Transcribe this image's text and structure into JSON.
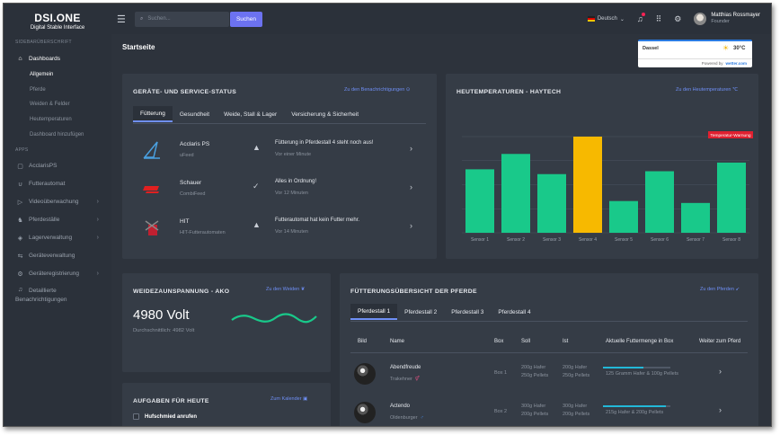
{
  "brand": {
    "title": "DSI.ONE",
    "subtitle": "Digital Stable Interface"
  },
  "sidebar": {
    "section1": "SIDEBARÜBERSCHRIFT",
    "dashboards": "Dashboards",
    "sub": [
      "Allgemein",
      "Pferde",
      "Weiden & Felder",
      "Heutemperaturen",
      "Dashboard hinzufügen"
    ],
    "section2": "APPS",
    "apps": [
      {
        "label": "AcclarisPS",
        "icon": "calendar-icon",
        "sym": "▢",
        "chev": false
      },
      {
        "label": "Futterautomat",
        "icon": "horseshoe-icon",
        "sym": "∪",
        "chev": false
      },
      {
        "label": "Videoüberwachung",
        "icon": "video-icon",
        "sym": "▷",
        "chev": true
      },
      {
        "label": "Pferdeställe",
        "icon": "horse-icon",
        "sym": "♞",
        "chev": true
      },
      {
        "label": "Lagerverwaltung",
        "icon": "box-icon",
        "sym": "◈",
        "chev": true
      },
      {
        "label": "Geräteverwaltung",
        "icon": "devices-icon",
        "sym": "⇆",
        "chev": false
      },
      {
        "label": "Geräteregistrierung",
        "icon": "gear-icon",
        "sym": "⚙",
        "chev": true
      }
    ],
    "notif1": "Detaillierte",
    "notif2": "Benachrichtigungen"
  },
  "topbar": {
    "search_placeholder": "Suchen...",
    "search_button": "Suchen",
    "language": "Deutsch",
    "user_name": "Matthias Rossmayer",
    "user_role": "Founder"
  },
  "page": {
    "title": "Startseite"
  },
  "weather": {
    "city": "Dassel",
    "temp": "30°C",
    "powered": "Powered by",
    "provider": "wetter.com"
  },
  "status": {
    "title": "GERÄTE- UND SERVICE-STATUS",
    "link": "Zu den Benachrichtigungen ⊙",
    "tabs": [
      "Fütterung",
      "Gesundheit",
      "Weide, Stall & Lager",
      "Versicherung & Sicherheit"
    ],
    "rows": [
      {
        "name": "Acclaris PS",
        "sub": "uFeed",
        "state": "▲",
        "msg": "Fütterung in Pferdestall 4 steht noch aus!",
        "time": "Vor einer Minute"
      },
      {
        "name": "Schauer",
        "sub": "CombiFeed",
        "state": "✓",
        "msg": "Alles in Ordnung!",
        "time": "Vor 12 Minuten"
      },
      {
        "name": "HIT",
        "sub": "HIT-Futterautomaten",
        "state": "▲",
        "msg": "Futterautomat hat kein Futter mehr.",
        "time": "Vor 14 Minuten"
      }
    ]
  },
  "heut": {
    "title": "HEUTEMPERATUREN - HAYTECH",
    "link": "Zu den Heutemperaturen ℃",
    "warning": "Temperatur-Warnung"
  },
  "chart_data": {
    "type": "bar",
    "categories": [
      "Sensor 1",
      "Sensor 2",
      "Sensor 3",
      "Sensor 4",
      "Sensor 5",
      "Sensor 6",
      "Sensor 7",
      "Sensor 8"
    ],
    "values": [
      66,
      82,
      61,
      100,
      33,
      64,
      31,
      73
    ],
    "ylim": [
      0,
      100
    ],
    "colors": [
      "#19c98a",
      "#19c98a",
      "#19c98a",
      "#f7b900",
      "#19c98a",
      "#19c98a",
      "#19c98a",
      "#19c98a"
    ],
    "grid": true
  },
  "fence": {
    "title": "WEIDEZAUNSPANNUNG - AKO",
    "link": "Zu den Weiden ❦",
    "value": "4980 Volt",
    "avg": "Durchschnittlich: 4982 Volt"
  },
  "tasks": {
    "title": "AUFGABEN FÜR HEUTE",
    "link": "Zum Kalender ▣",
    "item": "Hufschmied anrufen"
  },
  "feeding": {
    "title": "FÜTTERUNGSÜBERSICHT DER PFERDE",
    "link": "Zu den Pferden ➹",
    "tabs": [
      "Pferdestall 1",
      "Pferdestall 2",
      "Pferdestall 3",
      "Pferdestall 4"
    ],
    "headers": [
      "Bild",
      "Name",
      "Box",
      "Soll",
      "Ist",
      "Aktuelle Futtermenge in Box",
      "Weiter zum Pferd"
    ],
    "rows": [
      {
        "name": "Abendfreude",
        "breed": "Trakehner",
        "sym": "⚥",
        "box": "Box 1",
        "soll1": "200g Hafer",
        "soll2": "250g Pellets",
        "ist1": "200g Hafer",
        "ist2": "250g Pellets",
        "amount": "125 Gramm Hafer & 100g Pellets",
        "fill": 0.6
      },
      {
        "name": "Actendo",
        "breed": "Oldenburger",
        "sym": "♂",
        "box": "Box 2",
        "soll1": "300g Hafer",
        "soll2": "200g Pellets",
        "ist1": "300g Hafer",
        "ist2": "200g Pellets",
        "amount": "215g Hafer & 200g Pellets",
        "fill": 0.93
      }
    ]
  }
}
